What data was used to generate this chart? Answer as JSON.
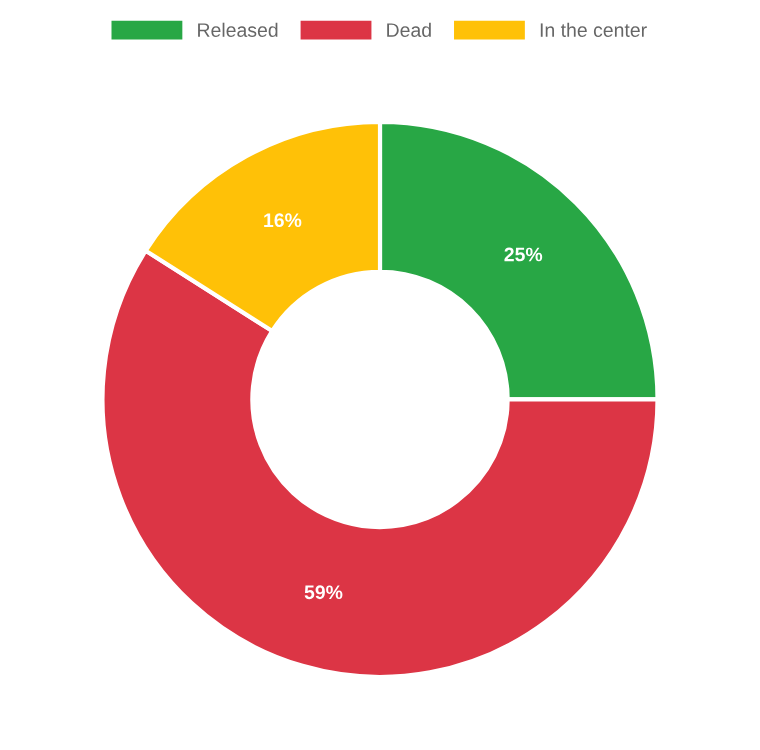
{
  "chart_data": {
    "type": "donut",
    "categories": [
      "Released",
      "Dead",
      "In the center"
    ],
    "values": [
      25,
      59,
      16
    ],
    "colors": [
      "#28a745",
      "#dc3545",
      "#ffc107"
    ],
    "value_labels": [
      "25%",
      "59%",
      "16%"
    ],
    "legend": "top"
  }
}
